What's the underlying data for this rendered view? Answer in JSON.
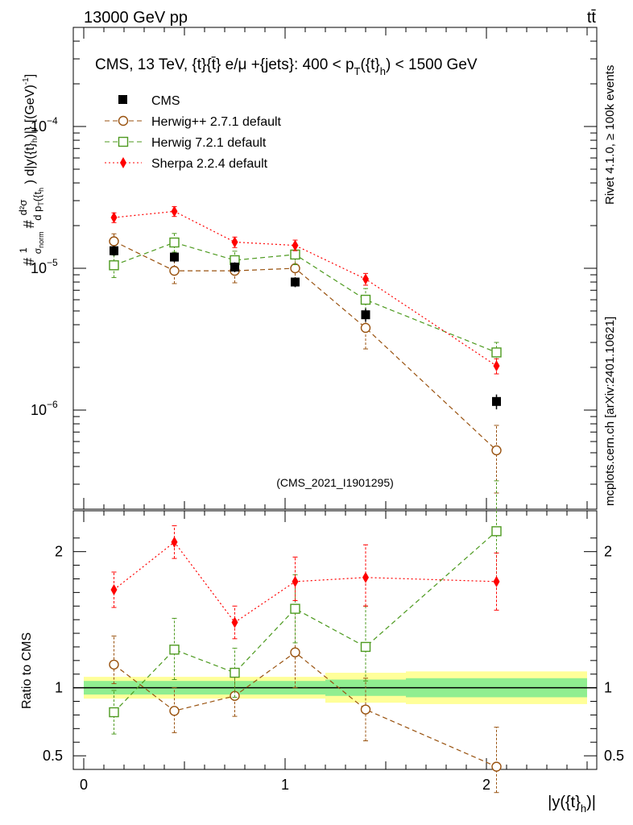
{
  "header": {
    "left": "13000 GeV pp",
    "right": "tt̄"
  },
  "side_labels": {
    "rivet": "Rivet 4.1.0, ≥ 100k events",
    "mcplots": "mcplots.cern.ch [arXiv:2401.10621]"
  },
  "chart_data": {
    "type": "scatter",
    "title": "CMS, 13 TeV, {t}{t̄} e/μ +{jets}: 400 < p_T({t}_h) < 1500 GeV",
    "title_main": "CMS, 13 TeV, {t}{t̄} e/μ +{jets}: 400 <  p",
    "title_sub_T": "T",
    "title_mid": "({t}",
    "title_sub_h": "h",
    "title_end": ") < 1500 GeV",
    "analysis_id": "(CMS_2021_I1901295)",
    "xlabel": "|y({t}_h)|",
    "xlabel_main": "|y({t}",
    "xlabel_sub": "h",
    "xlabel_end": ")|",
    "ylabel": "# 1/σ_norm # d²σ / d p_T({t}_h) d|y({t}_h)| [(GeV)^-1]",
    "ratio_ylabel": "Ratio to CMS",
    "xlim": [
      0,
      2.5
    ],
    "ylim": [
      2e-07,
      0.0005
    ],
    "yscale": "log",
    "ratio_ylim": [
      0.4,
      2.3
    ],
    "x_ticks": [
      0,
      1,
      2
    ],
    "x_tick_labels": [
      "0",
      "1",
      "2"
    ],
    "y_tick_labels": [
      {
        "base": "10",
        "exp": "−4",
        "value": 0.0001
      },
      {
        "base": "10",
        "exp": "−5",
        "value": 1e-05
      },
      {
        "base": "10",
        "exp": "−6",
        "value": 1e-06
      }
    ],
    "ratio_ticks": [
      0.5,
      1,
      2
    ],
    "ratio_tick_labels": [
      "0.5",
      "1",
      "2"
    ],
    "bins": [
      [
        0,
        0.3
      ],
      [
        0.3,
        0.6
      ],
      [
        0.6,
        0.9
      ],
      [
        0.9,
        1.2
      ],
      [
        1.2,
        1.6
      ],
      [
        1.6,
        2.5
      ]
    ],
    "x": [
      0.15,
      0.45,
      0.75,
      1.05,
      1.4,
      2.05
    ],
    "data": {
      "name": "CMS",
      "values": [
        1.33e-05,
        1.2e-05,
        1.02e-05,
        8e-06,
        4.7e-06,
        1.15e-06
      ],
      "err_rel_inner": [
        0.05,
        0.05,
        0.05,
        0.05,
        0.06,
        0.07
      ],
      "err_rel_outer": [
        0.08,
        0.08,
        0.08,
        0.08,
        0.11,
        0.12
      ]
    },
    "series": [
      {
        "name": "Herwig++ 2.7.1 default",
        "color": "#99520f",
        "marker": "circle-open",
        "dash": "6,4",
        "values": [
          1.55e-05,
          9.6e-06,
          9.6e-06,
          1e-05,
          3.8e-06,
          5.2e-07
        ],
        "err_low": [
          1.38e-05,
          7.8e-06,
          7.9e-06,
          8.3e-06,
          2.7e-06,
          2.6e-07
        ],
        "err_high": [
          1.75e-05,
          1.15e-05,
          1.12e-05,
          1.18e-05,
          4.9e-06,
          7.8e-07
        ],
        "ratio": [
          1.17,
          0.83,
          0.94,
          1.26,
          0.84,
          0.42
        ],
        "ratio_low": [
          1.03,
          0.67,
          0.79,
          1.0,
          0.61,
          0.23
        ],
        "ratio_high": [
          1.38,
          1.0,
          1.09,
          1.55,
          1.07,
          0.71
        ]
      },
      {
        "name": "Herwig 7.2.1 default",
        "color": "#4d9a1f",
        "marker": "square-open",
        "dash": "6,4",
        "values": [
          1.05e-05,
          1.52e-05,
          1.14e-05,
          1.25e-05,
          6e-06,
          2.55e-06
        ],
        "err_low": [
          8.6e-06,
          1.3e-05,
          9.6e-06,
          1.06e-05,
          4.8e-06,
          2.1e-06
        ],
        "err_high": [
          1.24e-05,
          1.76e-05,
          1.32e-05,
          1.44e-05,
          7.2e-06,
          3e-06
        ],
        "ratio": [
          0.82,
          1.28,
          1.11,
          1.58,
          1.3,
          2.15
        ],
        "ratio_low": [
          0.66,
          1.06,
          0.93,
          1.33,
          1.05,
          1.78
        ],
        "ratio_high": [
          0.98,
          1.51,
          1.29,
          1.83,
          1.6,
          2.52
        ]
      },
      {
        "name": "Sherpa 2.2.4 default",
        "color": "#ff0000",
        "marker": "diamond-filled",
        "dash": "2,3",
        "values": [
          2.28e-05,
          2.52e-05,
          1.53e-05,
          1.45e-05,
          8.4e-06,
          2.05e-06
        ],
        "err_low": [
          2.1e-05,
          2.32e-05,
          1.4e-05,
          1.33e-05,
          7.6e-06,
          1.8e-06
        ],
        "err_high": [
          2.46e-05,
          2.72e-05,
          1.66e-05,
          1.58e-05,
          9.2e-06,
          2.3e-06
        ],
        "ratio": [
          1.72,
          2.07,
          1.48,
          1.78,
          1.81,
          1.78
        ],
        "ratio_low": [
          1.59,
          1.95,
          1.36,
          1.64,
          1.6,
          1.57
        ],
        "ratio_high": [
          1.85,
          2.19,
          1.6,
          1.96,
          2.05,
          1.99
        ]
      }
    ],
    "ratio_band_inner": [
      0.05,
      0.05,
      0.05,
      0.05,
      0.06,
      0.07
    ],
    "ratio_band_outer": [
      0.08,
      0.08,
      0.08,
      0.08,
      0.11,
      0.12
    ],
    "band_colors": {
      "inner": "#90ee90",
      "outer": "#ffff99"
    }
  }
}
